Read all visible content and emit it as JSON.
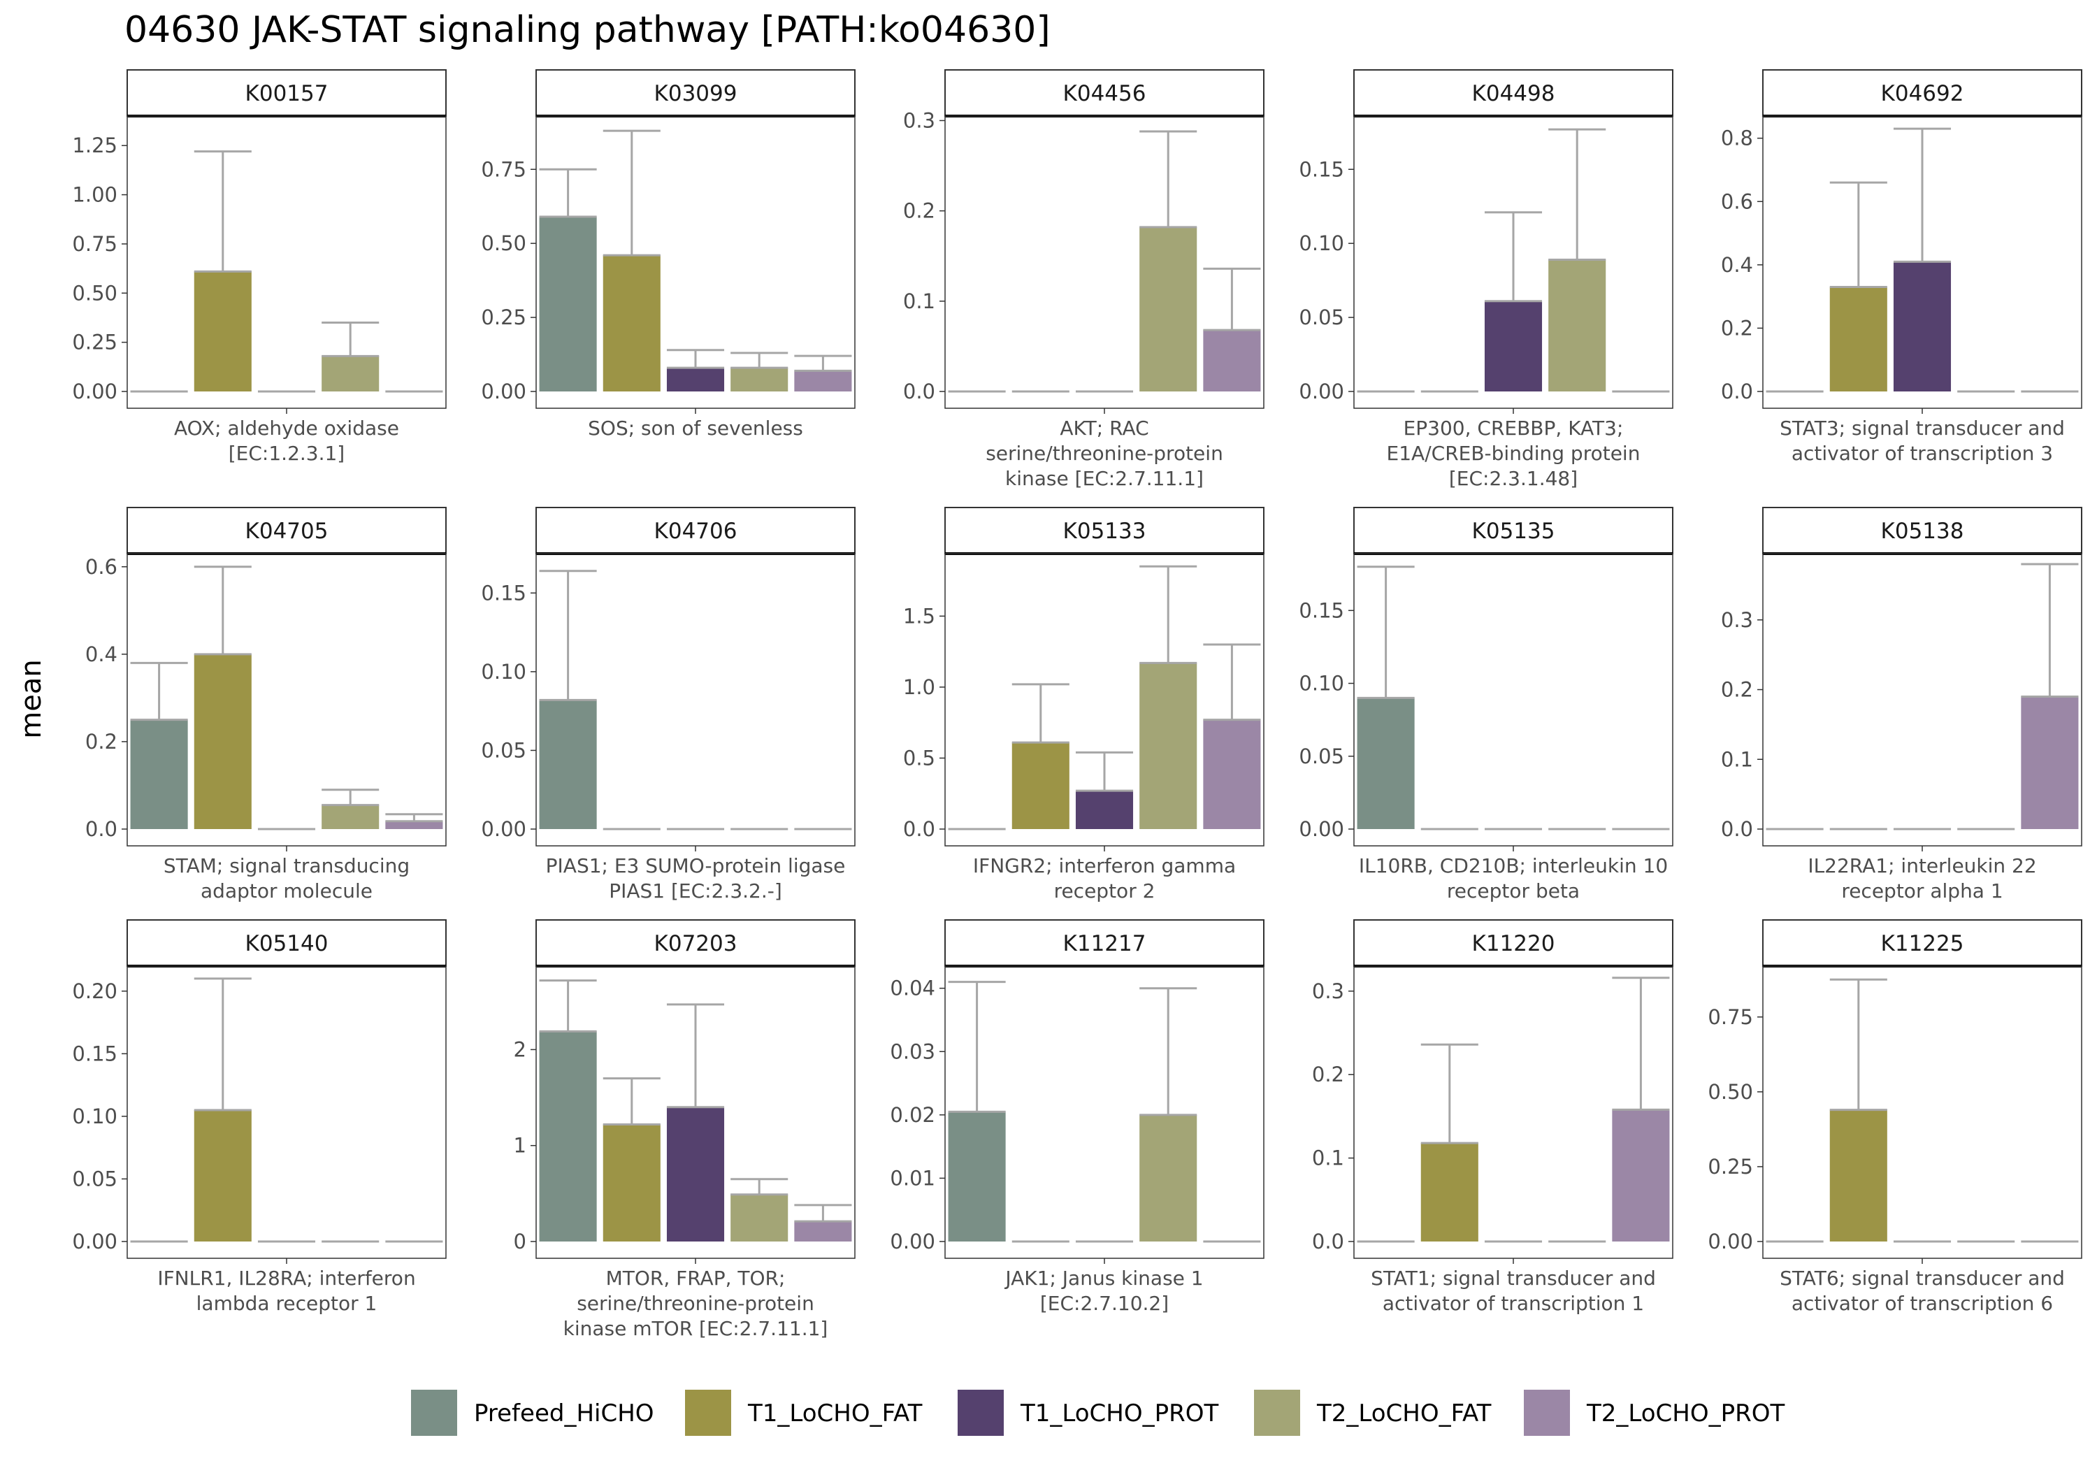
{
  "title": "04630 JAK-STAT signaling pathway [PATH:ko04630]",
  "ylabel": "mean",
  "colors": {
    "Prefeed_HiCHO": "#7a8f86",
    "T1_LoCHO_FAT": "#9c9446",
    "T1_LoCHO_PROT": "#55416e",
    "T2_LoCHO_FAT": "#a3a576",
    "T2_LoCHO_PROT": "#9b87a6",
    "errorbar": "#a6a6a6",
    "strip_bg": "#ffffff",
    "panel_border": "#333333"
  },
  "chart_data": {
    "type": "bar",
    "facet_layout": "3 rows x 5 columns",
    "legend_position": "bottom",
    "grid": false,
    "groups": [
      "Prefeed_HiCHO",
      "T1_LoCHO_FAT",
      "T1_LoCHO_PROT",
      "T2_LoCHO_FAT",
      "T2_LoCHO_PROT"
    ],
    "panels": [
      {
        "id": "K00157",
        "xlabel": [
          "AOX; aldehyde oxidase",
          "[EC:1.2.3.1]"
        ],
        "ylim": [
          0,
          1.4
        ],
        "yticks": [
          0,
          0.25,
          0.5,
          0.75,
          1.0,
          1.25
        ],
        "ytick_labels": [
          "0.00",
          "0.25",
          "0.50",
          "0.75",
          "1.00",
          "1.25"
        ],
        "values": [
          0,
          0.61,
          0,
          0.18,
          0
        ],
        "errors": [
          null,
          1.22,
          null,
          0.35,
          null
        ]
      },
      {
        "id": "K03099",
        "xlabel": [
          "SOS; son of sevenless"
        ],
        "ylim": [
          0,
          0.93
        ],
        "yticks": [
          0,
          0.25,
          0.5,
          0.75
        ],
        "ytick_labels": [
          "0.00",
          "0.25",
          "0.50",
          "0.75"
        ],
        "values": [
          0.59,
          0.46,
          0.08,
          0.08,
          0.07
        ],
        "errors": [
          0.75,
          0.88,
          0.14,
          0.13,
          0.12
        ]
      },
      {
        "id": "K04456",
        "xlabel": [
          "AKT; RAC",
          "serine/threonine-protein",
          "kinase [EC:2.7.11.1]"
        ],
        "ylim": [
          0,
          0.305
        ],
        "yticks": [
          0,
          0.1,
          0.2,
          0.3
        ],
        "ytick_labels": [
          "0.0",
          "0.1",
          "0.2",
          "0.3"
        ],
        "values": [
          0,
          0,
          0,
          0.182,
          0.068
        ],
        "errors": [
          null,
          null,
          null,
          0.288,
          0.136
        ]
      },
      {
        "id": "K04498",
        "xlabel": [
          "EP300, CREBBP, KAT3;",
          "E1A/CREB-binding protein",
          "[EC:2.3.1.48]"
        ],
        "ylim": [
          0,
          0.186
        ],
        "yticks": [
          0,
          0.05,
          0.1,
          0.15
        ],
        "ytick_labels": [
          "0.00",
          "0.05",
          "0.10",
          "0.15"
        ],
        "values": [
          0,
          0,
          0.061,
          0.089,
          0
        ],
        "errors": [
          null,
          null,
          0.121,
          0.177,
          null
        ]
      },
      {
        "id": "K04692",
        "xlabel": [
          "STAT3; signal transducer and",
          "activator of transcription 3"
        ],
        "ylim": [
          0,
          0.87
        ],
        "yticks": [
          0,
          0.2,
          0.4,
          0.6,
          0.8
        ],
        "ytick_labels": [
          "0.0",
          "0.2",
          "0.4",
          "0.6",
          "0.8"
        ],
        "values": [
          0,
          0.33,
          0.41,
          0,
          0
        ],
        "errors": [
          null,
          0.66,
          0.83,
          null,
          null
        ]
      },
      {
        "id": "K04705",
        "xlabel": [
          "STAM; signal transducing",
          "adaptor molecule"
        ],
        "ylim": [
          0,
          0.63
        ],
        "yticks": [
          0,
          0.2,
          0.4,
          0.6
        ],
        "ytick_labels": [
          "0.0",
          "0.2",
          "0.4",
          "0.6"
        ],
        "values": [
          0.25,
          0.4,
          0,
          0.055,
          0.018
        ],
        "errors": [
          0.38,
          0.6,
          null,
          0.09,
          0.034
        ]
      },
      {
        "id": "K04706",
        "xlabel": [
          "PIAS1; E3 SUMO-protein ligase",
          "PIAS1 [EC:2.3.2.-]"
        ],
        "ylim": [
          0,
          0.175
        ],
        "yticks": [
          0,
          0.05,
          0.1,
          0.15
        ],
        "ytick_labels": [
          "0.00",
          "0.05",
          "0.10",
          "0.15"
        ],
        "values": [
          0.082,
          0,
          0,
          0,
          0
        ],
        "errors": [
          0.164,
          null,
          null,
          null,
          null
        ]
      },
      {
        "id": "K05133",
        "xlabel": [
          "IFNGR2; interferon gamma",
          "receptor 2"
        ],
        "ylim": [
          0,
          1.94
        ],
        "yticks": [
          0,
          0.5,
          1.0,
          1.5
        ],
        "ytick_labels": [
          "0.0",
          "0.5",
          "1.0",
          "1.5"
        ],
        "values": [
          0,
          0.61,
          0.27,
          1.17,
          0.77
        ],
        "errors": [
          null,
          1.02,
          0.54,
          1.85,
          1.3
        ]
      },
      {
        "id": "K05135",
        "xlabel": [
          "IL10RB, CD210B; interleukin 10",
          "receptor beta"
        ],
        "ylim": [
          0,
          0.189
        ],
        "yticks": [
          0,
          0.05,
          0.1,
          0.15
        ],
        "ytick_labels": [
          "0.00",
          "0.05",
          "0.10",
          "0.15"
        ],
        "values": [
          0.09,
          0,
          0,
          0,
          0
        ],
        "errors": [
          0.18,
          null,
          null,
          null,
          null
        ]
      },
      {
        "id": "K05138",
        "xlabel": [
          "IL22RA1; interleukin 22",
          "receptor alpha 1"
        ],
        "ylim": [
          0,
          0.395
        ],
        "yticks": [
          0,
          0.1,
          0.2,
          0.3
        ],
        "ytick_labels": [
          "0.0",
          "0.1",
          "0.2",
          "0.3"
        ],
        "values": [
          0,
          0,
          0,
          0,
          0.19
        ],
        "errors": [
          null,
          null,
          null,
          null,
          0.38
        ]
      },
      {
        "id": "K05140",
        "xlabel": [
          "IFNLR1, IL28RA; interferon",
          "lambda receptor 1"
        ],
        "ylim": [
          0,
          0.22
        ],
        "yticks": [
          0,
          0.05,
          0.1,
          0.15,
          0.2
        ],
        "ytick_labels": [
          "0.00",
          "0.05",
          "0.10",
          "0.15",
          "0.20"
        ],
        "values": [
          0,
          0.105,
          0,
          0,
          0
        ],
        "errors": [
          null,
          0.21,
          null,
          null,
          null
        ]
      },
      {
        "id": "K07203",
        "xlabel": [
          "MTOR, FRAP, TOR;",
          "serine/threonine-protein",
          "kinase mTOR [EC:2.7.11.1]"
        ],
        "ylim": [
          0,
          2.87
        ],
        "yticks": [
          0,
          1,
          2
        ],
        "ytick_labels": [
          "0",
          "1",
          "2"
        ],
        "values": [
          2.19,
          1.22,
          1.4,
          0.49,
          0.21
        ],
        "errors": [
          2.72,
          1.7,
          2.47,
          0.65,
          0.38
        ]
      },
      {
        "id": "K11217",
        "xlabel": [
          "JAK1; Janus kinase 1",
          "[EC:2.7.10.2]"
        ],
        "ylim": [
          0,
          0.0435
        ],
        "yticks": [
          0,
          0.01,
          0.02,
          0.03,
          0.04
        ],
        "ytick_labels": [
          "0.00",
          "0.01",
          "0.02",
          "0.03",
          "0.04"
        ],
        "values": [
          0.0205,
          0,
          0,
          0.02,
          0
        ],
        "errors": [
          0.041,
          null,
          null,
          0.04,
          null
        ]
      },
      {
        "id": "K11220",
        "xlabel": [
          "STAT1; signal transducer and",
          "activator of transcription 1"
        ],
        "ylim": [
          0,
          0.33
        ],
        "yticks": [
          0,
          0.1,
          0.2,
          0.3
        ],
        "ytick_labels": [
          "0.0",
          "0.1",
          "0.2",
          "0.3"
        ],
        "values": [
          0,
          0.118,
          0,
          0,
          0.158
        ],
        "errors": [
          null,
          0.236,
          null,
          null,
          0.316
        ]
      },
      {
        "id": "K11225",
        "xlabel": [
          "STAT6; signal transducer and",
          "activator of transcription 6"
        ],
        "ylim": [
          0,
          0.92
        ],
        "yticks": [
          0,
          0.25,
          0.5,
          0.75
        ],
        "ytick_labels": [
          "0.00",
          "0.25",
          "0.50",
          "0.75"
        ],
        "values": [
          0,
          0.44,
          0,
          0,
          0
        ],
        "errors": [
          null,
          0.875,
          null,
          null,
          null
        ]
      }
    ]
  }
}
